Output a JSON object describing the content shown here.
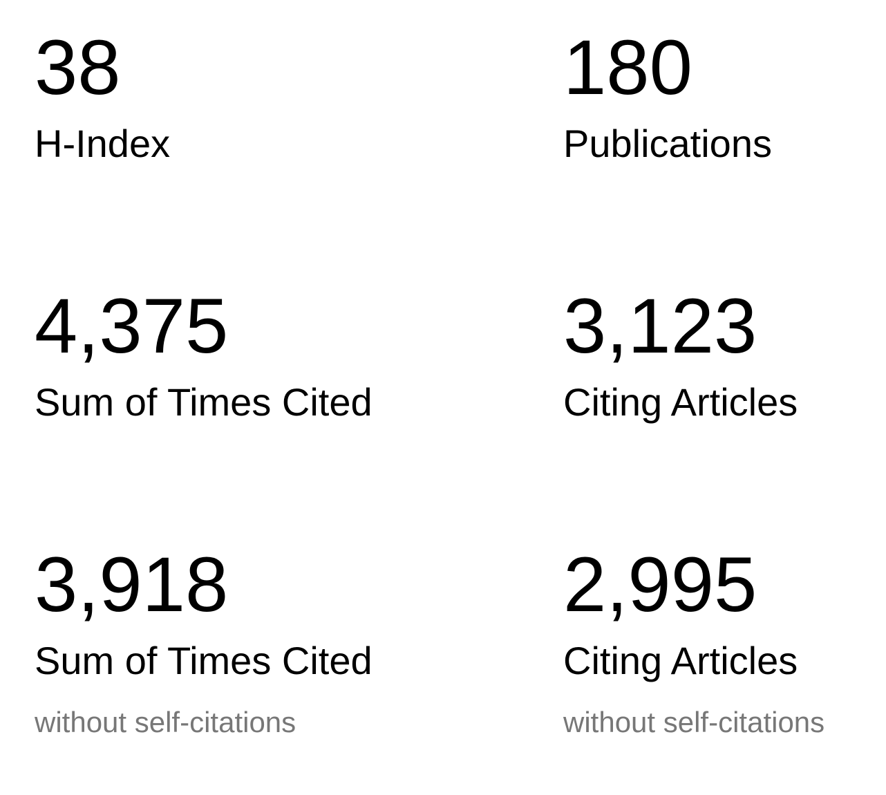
{
  "metrics": [
    {
      "value": "38",
      "label": "H-Index"
    },
    {
      "value": "180",
      "label": "Publications"
    },
    {
      "value": "4,375",
      "label": "Sum of Times Cited"
    },
    {
      "value": "3,123",
      "label": "Citing Articles"
    },
    {
      "value": "3,918",
      "label": "Sum of Times Cited",
      "note": "without self-citations"
    },
    {
      "value": "2,995",
      "label": "Citing Articles",
      "note": "without self-citations"
    }
  ]
}
